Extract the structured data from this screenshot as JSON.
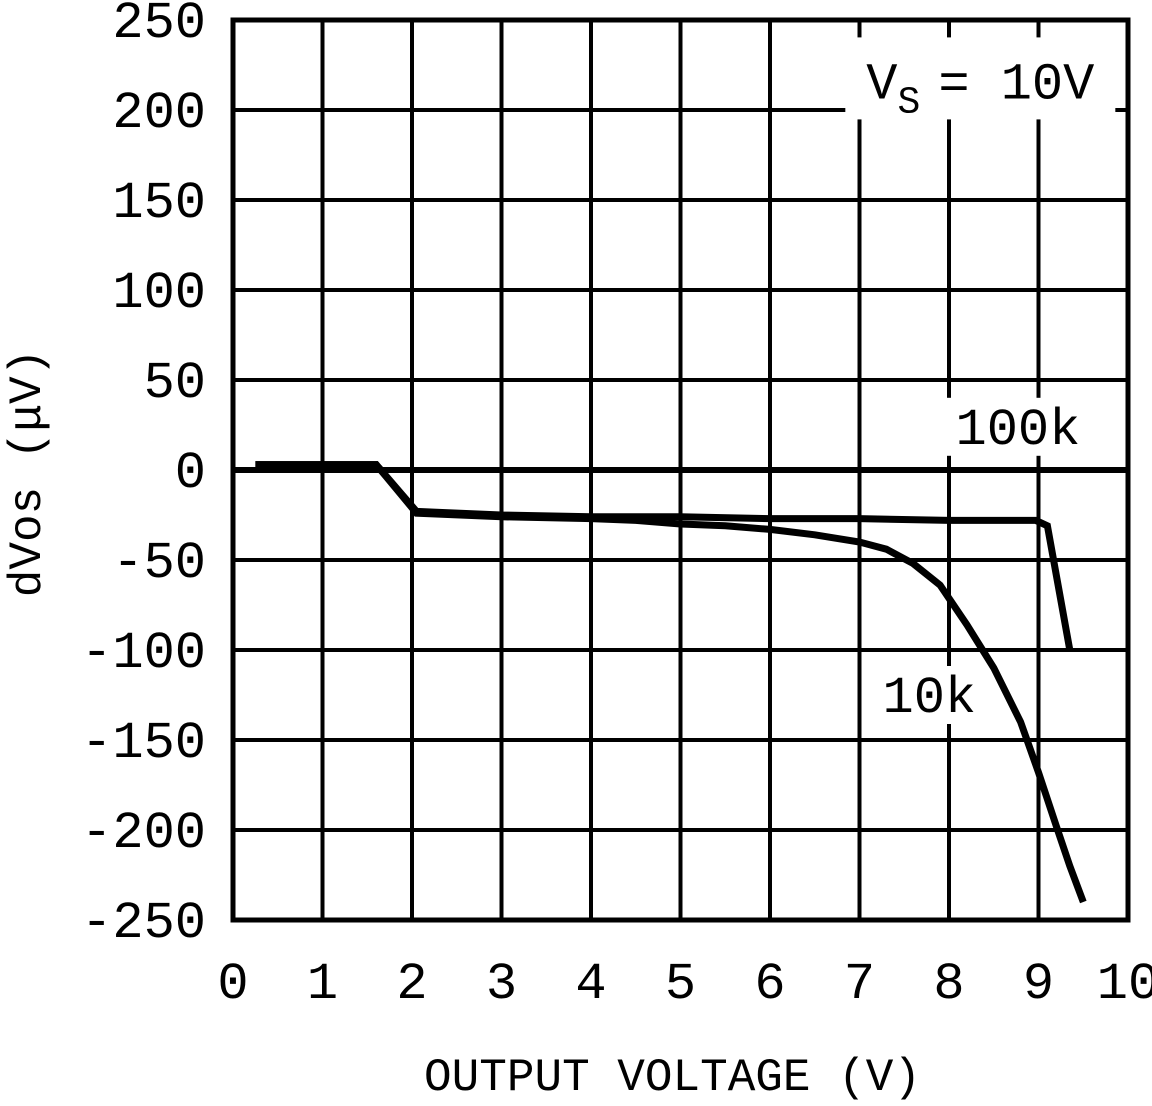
{
  "figure": {
    "background_color": "#ffffff",
    "ink_color": "#000000"
  },
  "chart_data": {
    "type": "line",
    "title": "",
    "xlabel": "OUTPUT VOLTAGE (V)",
    "ylabel": "dVos (μV)",
    "xlim": [
      0,
      10
    ],
    "ylim": [
      -250,
      250
    ],
    "x_ticks": [
      0,
      1,
      2,
      3,
      4,
      5,
      6,
      7,
      8,
      9,
      10
    ],
    "y_ticks": [
      250,
      200,
      150,
      100,
      50,
      0,
      -50,
      -100,
      -150,
      -200,
      -250
    ],
    "grid": true,
    "zero_line_emphasized": true,
    "legend_position": "inline-curve-labels",
    "annotation": {
      "text_main": "V",
      "text_sub": "S",
      "text_rest": "= 10V",
      "x": 8.35,
      "y": 217
    },
    "series": [
      {
        "name": "100k",
        "label_x": 8.77,
        "label_y": 24,
        "points": [
          [
            0.25,
            3
          ],
          [
            1.6,
            3
          ],
          [
            2.05,
            -23
          ],
          [
            3.0,
            -25
          ],
          [
            4.0,
            -26
          ],
          [
            5.0,
            -26
          ],
          [
            6.0,
            -27
          ],
          [
            7.0,
            -27
          ],
          [
            8.0,
            -28
          ],
          [
            8.97,
            -28
          ],
          [
            9.1,
            -31
          ],
          [
            9.35,
            -100
          ]
        ]
      },
      {
        "name": "10k",
        "label_x": 7.78,
        "label_y": -125,
        "points": [
          [
            0.25,
            3
          ],
          [
            1.6,
            3
          ],
          [
            2.05,
            -24
          ],
          [
            3.0,
            -26
          ],
          [
            4.0,
            -27
          ],
          [
            4.5,
            -28
          ],
          [
            5.0,
            -30
          ],
          [
            5.5,
            -31
          ],
          [
            6.0,
            -33
          ],
          [
            6.5,
            -36
          ],
          [
            7.0,
            -40
          ],
          [
            7.3,
            -44
          ],
          [
            7.6,
            -52
          ],
          [
            7.9,
            -64
          ],
          [
            8.2,
            -86
          ],
          [
            8.5,
            -110
          ],
          [
            8.8,
            -140
          ],
          [
            9.0,
            -168
          ],
          [
            9.2,
            -198
          ],
          [
            9.35,
            -220
          ],
          [
            9.5,
            -240
          ]
        ]
      }
    ]
  }
}
